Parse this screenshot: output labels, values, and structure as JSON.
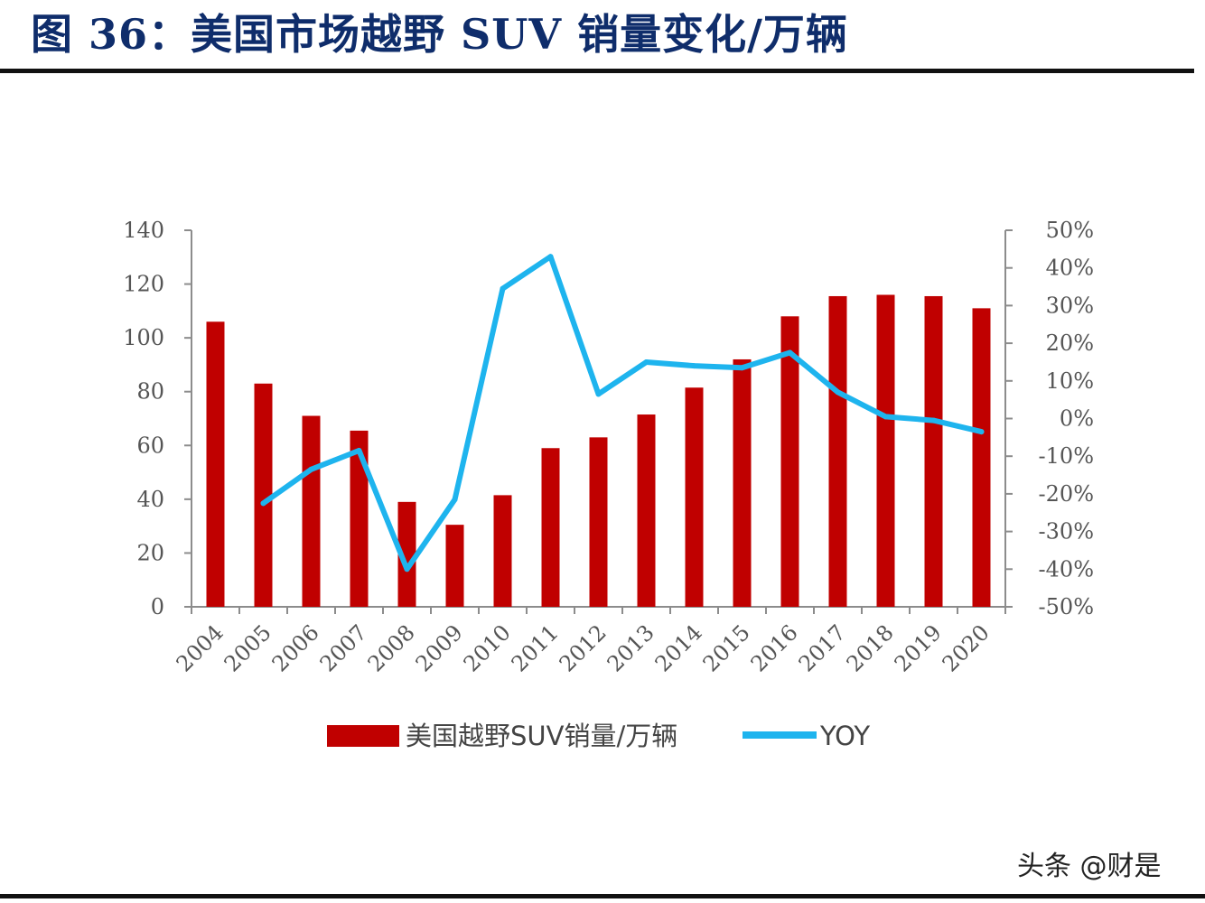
{
  "figure": {
    "title": "图 36：美国市场越野 SUV 销量变化/万辆",
    "watermark": "头条 @财是"
  },
  "chart_data": {
    "type": "bar",
    "categories": [
      "2004",
      "2005",
      "2006",
      "2007",
      "2008",
      "2009",
      "2010",
      "2011",
      "2012",
      "2013",
      "2014",
      "2015",
      "2016",
      "2017",
      "2018",
      "2019",
      "2020"
    ],
    "series": [
      {
        "name": "美国越野SUV销量/万辆",
        "type": "bar",
        "axis": "left",
        "color": "#c00000",
        "values": [
          106,
          83,
          71,
          65.5,
          39,
          30.5,
          41.5,
          59,
          63,
          71.5,
          81.5,
          92,
          108,
          115.5,
          116,
          115.5,
          111
        ]
      },
      {
        "name": "YOY",
        "type": "line",
        "axis": "right",
        "color": "#1eb4ee",
        "values": [
          null,
          -22.5,
          -13.5,
          -8.5,
          -40,
          -21.5,
          34.5,
          43,
          6.5,
          15,
          14,
          13.5,
          17.5,
          7,
          0.5,
          -0.5,
          -3.5
        ]
      }
    ],
    "yaxis_left": {
      "min": 0,
      "max": 140,
      "step": 20,
      "ticks": [
        "0",
        "20",
        "40",
        "60",
        "80",
        "100",
        "120",
        "140"
      ]
    },
    "yaxis_right": {
      "min": -50,
      "max": 50,
      "step": 10,
      "ticks": [
        "-50%",
        "-40%",
        "-30%",
        "-20%",
        "-10%",
        "0%",
        "10%",
        "20%",
        "30%",
        "40%",
        "50%"
      ]
    },
    "grid": false,
    "legend": "bottom"
  }
}
